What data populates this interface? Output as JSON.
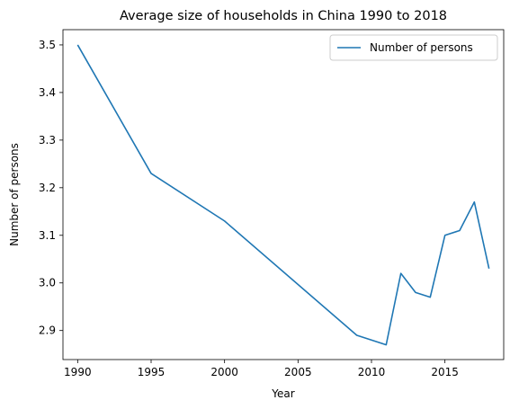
{
  "chart_data": {
    "type": "line",
    "title": "Average size of households in China 1990 to 2018",
    "xlabel": "Year",
    "ylabel": "Number of persons",
    "xlim": [
      1989,
      2019
    ],
    "ylim": [
      2.839,
      3.532
    ],
    "xticks": [
      1990,
      1995,
      2000,
      2005,
      2010,
      2015
    ],
    "yticks": [
      2.9,
      3.0,
      3.1,
      3.2,
      3.3,
      3.4,
      3.5
    ],
    "grid": false,
    "legend_position": "top-right",
    "series": [
      {
        "name": "Number of persons",
        "color": "#1f77b4",
        "x": [
          1990,
          1995,
          2000,
          2009,
          2011,
          2012,
          2013,
          2014,
          2015,
          2016,
          2017,
          2018
        ],
        "y": [
          3.5,
          3.23,
          3.13,
          2.89,
          2.87,
          3.02,
          2.98,
          2.97,
          3.1,
          3.11,
          3.17,
          3.03
        ]
      }
    ]
  }
}
